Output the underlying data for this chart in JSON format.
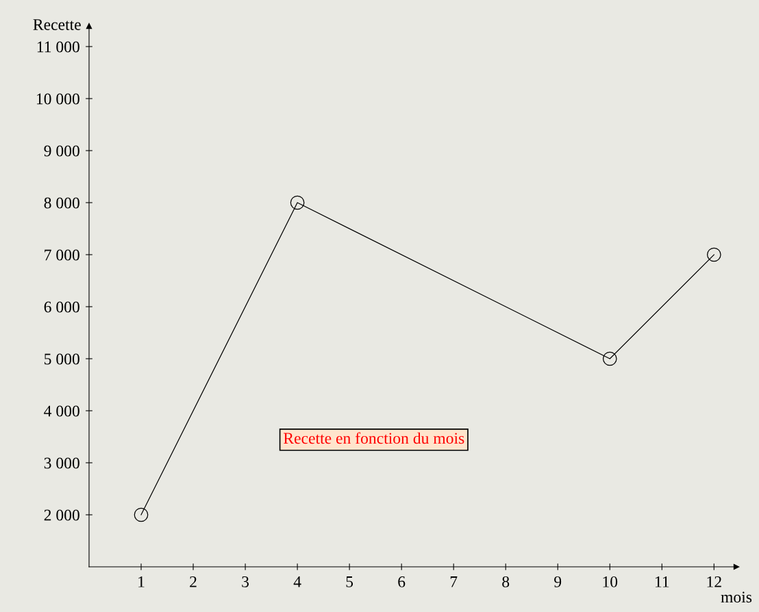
{
  "chart_data": {
    "type": "line",
    "xlabel": "mois",
    "ylabel": "Recette",
    "x": [
      1,
      4,
      10,
      12
    ],
    "series": [
      {
        "color": "#000000",
        "values": [
          2000,
          8000,
          5000,
          7000
        ]
      }
    ],
    "xlim": [
      0,
      12.43
    ],
    "ylim": [
      1000,
      11395
    ],
    "xticks": [
      1,
      2,
      3,
      4,
      5,
      6,
      7,
      8,
      9,
      10,
      11,
      12
    ],
    "yticks": [
      {
        "value": 2000,
        "label": "2 000"
      },
      {
        "value": 3000,
        "label": "3 000"
      },
      {
        "value": 4000,
        "label": "4 000"
      },
      {
        "value": 5000,
        "label": "5 000"
      },
      {
        "value": 6000,
        "label": "6 000"
      },
      {
        "value": 7000,
        "label": "7 000"
      },
      {
        "value": 8000,
        "label": "8 000"
      },
      {
        "value": 9000,
        "label": "9 000"
      },
      {
        "value": 10000,
        "label": "10 000"
      },
      {
        "value": 11000,
        "label": "11 000"
      }
    ],
    "marker": "circle",
    "line_style": "solid",
    "grid": false,
    "legend": false,
    "annotations": [
      "Recette en fonction du mois"
    ]
  }
}
